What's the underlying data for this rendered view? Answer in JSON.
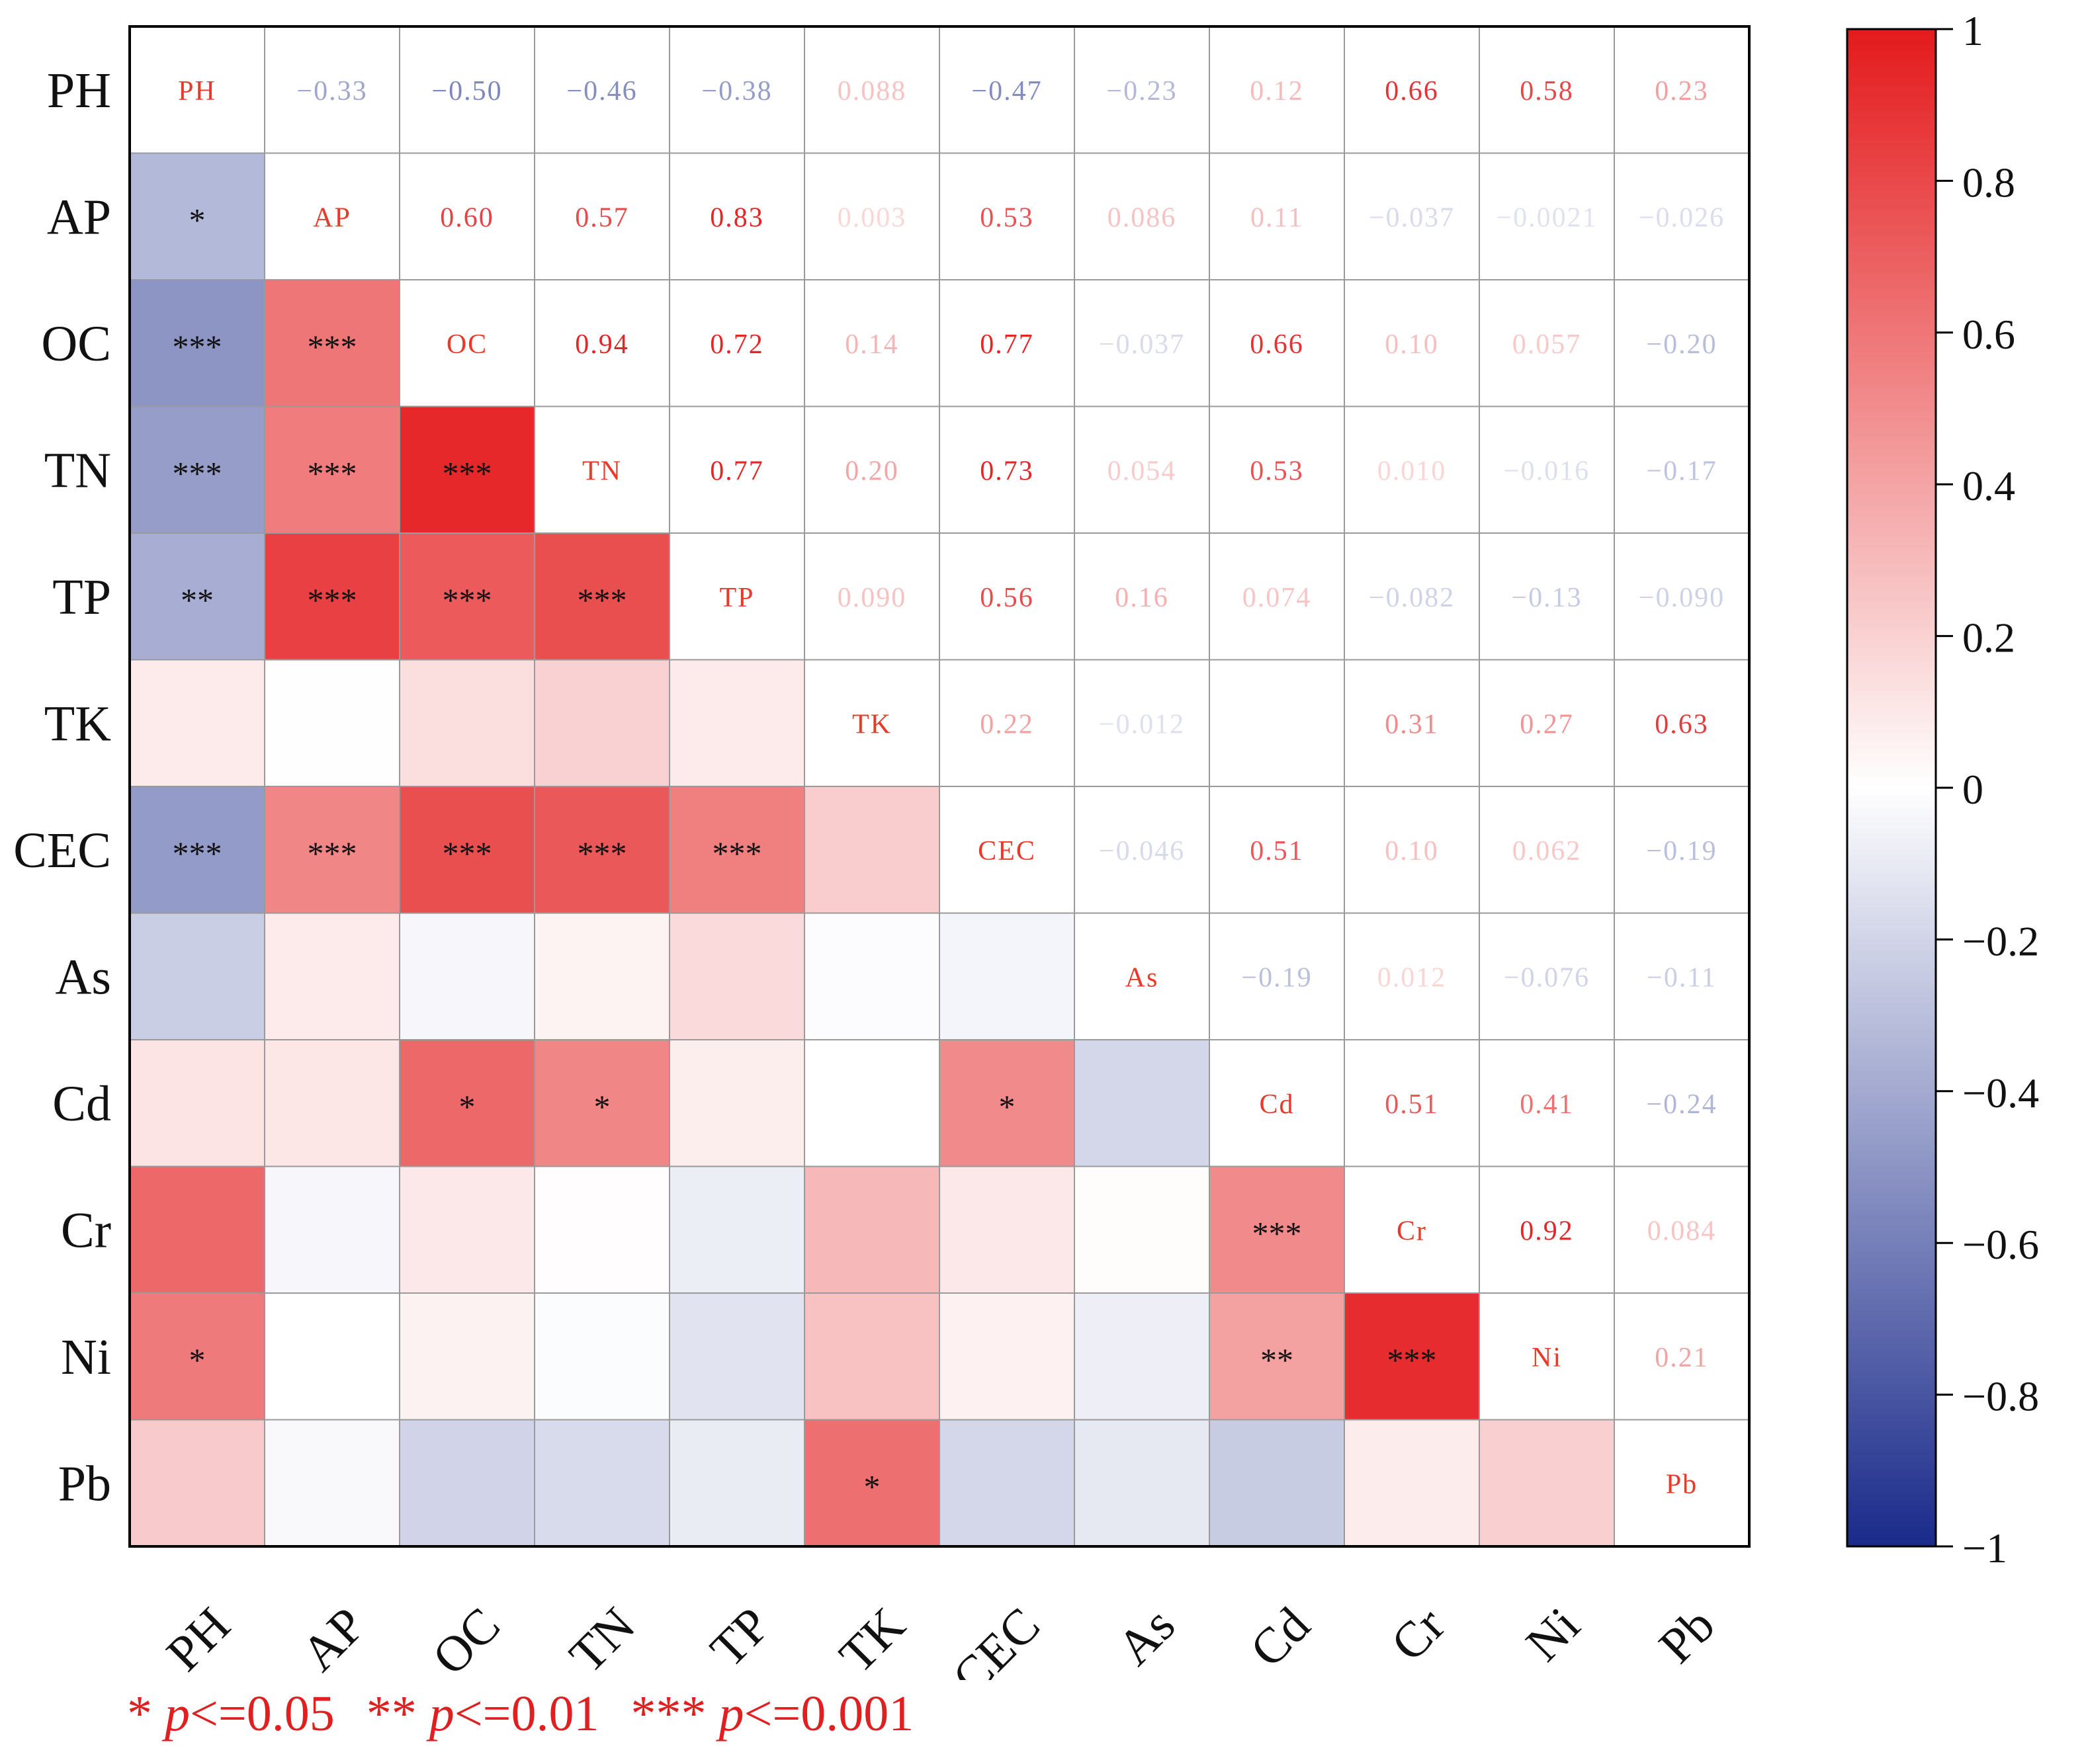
{
  "chart_data": {
    "type": "heatmap",
    "title": "",
    "xlabel": "",
    "ylabel": "",
    "variables": [
      "PH",
      "AP",
      "OC",
      "TN",
      "TP",
      "TK",
      "CEC",
      "As",
      "Cd",
      "Cr",
      "Ni",
      "Pb"
    ],
    "matrix": [
      [
        1,
        -0.33,
        -0.5,
        -0.46,
        -0.38,
        0.088,
        -0.47,
        -0.23,
        0.12,
        0.66,
        0.58,
        0.23
      ],
      [
        -0.33,
        1,
        0.6,
        0.57,
        0.83,
        0.003,
        0.53,
        0.086,
        0.11,
        -0.037,
        -0.002,
        -0.026
      ],
      [
        -0.5,
        0.6,
        1,
        0.94,
        0.72,
        0.14,
        0.77,
        -0.037,
        0.66,
        0.1,
        0.057,
        -0.2
      ],
      [
        -0.46,
        0.57,
        0.94,
        1,
        0.77,
        0.2,
        0.73,
        0.054,
        0.53,
        0.01,
        -0.016,
        -0.17
      ],
      [
        -0.38,
        0.83,
        0.72,
        0.77,
        1,
        0.09,
        0.56,
        0.16,
        0.074,
        -0.082,
        -0.13,
        -0.09
      ],
      [
        0.088,
        0.003,
        0.14,
        0.2,
        0.09,
        1,
        0.22,
        -0.012,
        0.001,
        0.31,
        0.27,
        0.63
      ],
      [
        -0.47,
        0.53,
        0.77,
        0.73,
        0.56,
        0.22,
        1,
        -0.046,
        0.51,
        0.1,
        0.062,
        -0.19
      ],
      [
        -0.23,
        0.086,
        -0.037,
        0.054,
        0.16,
        -0.012,
        -0.046,
        1,
        -0.19,
        0.012,
        -0.076,
        -0.11
      ],
      [
        0.12,
        0.11,
        0.66,
        0.53,
        0.074,
        0.001,
        0.51,
        -0.19,
        1,
        0.51,
        0.41,
        -0.24
      ],
      [
        0.66,
        -0.037,
        0.1,
        0.01,
        -0.082,
        0.31,
        0.1,
        0.012,
        0.51,
        1,
        0.92,
        0.084
      ],
      [
        0.58,
        -0.002,
        0.057,
        -0.016,
        -0.13,
        0.27,
        0.062,
        -0.076,
        0.41,
        0.92,
        1,
        0.21
      ],
      [
        0.23,
        -0.026,
        -0.2,
        -0.17,
        -0.09,
        0.63,
        -0.19,
        -0.11,
        -0.24,
        0.084,
        0.21,
        1
      ]
    ],
    "upper_labels": [
      [
        "PH",
        "−0.33",
        "−0.50",
        "−0.46",
        "−0.38",
        "0.088",
        "−0.47",
        "−0.23",
        "0.12",
        "0.66",
        "0.58",
        "0.23"
      ],
      [
        "",
        "AP",
        "0.60",
        "0.57",
        "0.83",
        "0.003",
        "0.53",
        "0.086",
        "0.11",
        "−0.037",
        "−0.0021",
        "−0.026"
      ],
      [
        "",
        "",
        "OC",
        "0.94",
        "0.72",
        "0.14",
        "0.77",
        "−0.037",
        "0.66",
        "0.10",
        "0.057",
        "−0.20"
      ],
      [
        "",
        "",
        "",
        "TN",
        "0.77",
        "0.20",
        "0.73",
        "0.054",
        "0.53",
        "0.010",
        "−0.016",
        "−0.17"
      ],
      [
        "",
        "",
        "",
        "",
        "TP",
        "0.090",
        "0.56",
        "0.16",
        "0.074",
        "−0.082",
        "−0.13",
        "−0.090"
      ],
      [
        "",
        "",
        "",
        "",
        "",
        "TK",
        "0.22",
        "−0.012",
        "",
        "0.31",
        "0.27",
        "0.63"
      ],
      [
        "",
        "",
        "",
        "",
        "",
        "",
        "CEC",
        "−0.046",
        "0.51",
        "0.10",
        "0.062",
        "−0.19"
      ],
      [
        "",
        "",
        "",
        "",
        "",
        "",
        "",
        "As",
        "−0.19",
        "0.012",
        "−0.076",
        "−0.11"
      ],
      [
        "",
        "",
        "",
        "",
        "",
        "",
        "",
        "",
        "Cd",
        "0.51",
        "0.41",
        "−0.24"
      ],
      [
        "",
        "",
        "",
        "",
        "",
        "",
        "",
        "",
        "",
        "Cr",
        "0.92",
        "0.084"
      ],
      [
        "",
        "",
        "",
        "",
        "",
        "",
        "",
        "",
        "",
        "",
        "Ni",
        "0.21"
      ],
      [
        "",
        "",
        "",
        "",
        "",
        "",
        "",
        "",
        "",
        "",
        "",
        "Pb"
      ]
    ],
    "significance": [
      [
        "",
        "",
        "",
        "",
        "",
        "",
        "",
        "",
        "",
        "",
        "",
        ""
      ],
      [
        "*",
        "",
        "",
        "",
        "",
        "",
        "",
        "",
        "",
        "",
        "",
        ""
      ],
      [
        "***",
        "***",
        "",
        "",
        "",
        "",
        "",
        "",
        "",
        "",
        "",
        ""
      ],
      [
        "***",
        "***",
        "***",
        "",
        "",
        "",
        "",
        "",
        "",
        "",
        "",
        ""
      ],
      [
        "**",
        "***",
        "***",
        "***",
        "",
        "",
        "",
        "",
        "",
        "",
        "",
        ""
      ],
      [
        "",
        "",
        "",
        "",
        "",
        "",
        "",
        "",
        "",
        "",
        "",
        ""
      ],
      [
        "***",
        "***",
        "***",
        "***",
        "***",
        "",
        "",
        "",
        "",
        "",
        "",
        ""
      ],
      [
        "",
        "",
        "",
        "",
        "",
        "",
        "",
        "",
        "",
        "",
        "",
        ""
      ],
      [
        "",
        "",
        "*",
        "*",
        "",
        "",
        "*",
        "",
        "",
        "",
        "",
        ""
      ],
      [
        "",
        "",
        "",
        "",
        "",
        "",
        "",
        "",
        "***",
        "",
        "",
        ""
      ],
      [
        "*",
        "",
        "",
        "",
        "",
        "",
        "",
        "",
        "**",
        "***",
        "",
        ""
      ],
      [
        "",
        "",
        "",
        "",
        "",
        "*",
        "",
        "",
        "",
        "",
        "",
        ""
      ]
    ],
    "colorbar": {
      "range": [
        -1,
        1
      ],
      "ticks": [
        "1",
        "0.8",
        "0.6",
        "0.4",
        "0.2",
        "0",
        "−0.2",
        "−0.4",
        "−0.6",
        "−0.8",
        "−1"
      ],
      "tick_values": [
        1,
        0.8,
        0.6,
        0.4,
        0.2,
        0,
        -0.2,
        -0.4,
        -0.6,
        -0.8,
        -1
      ],
      "colors": {
        "negative": "#1a2a8a",
        "zero": "#ffffff",
        "positive": "#e41a1c"
      }
    },
    "legend_note": [
      {
        "stars": "*",
        "p": "p",
        "threshold": "<=0.05"
      },
      {
        "stars": "**",
        "p": "p",
        "threshold": "<=0.01"
      },
      {
        "stars": "***",
        "p": "p",
        "threshold": "<=0.001"
      }
    ]
  }
}
